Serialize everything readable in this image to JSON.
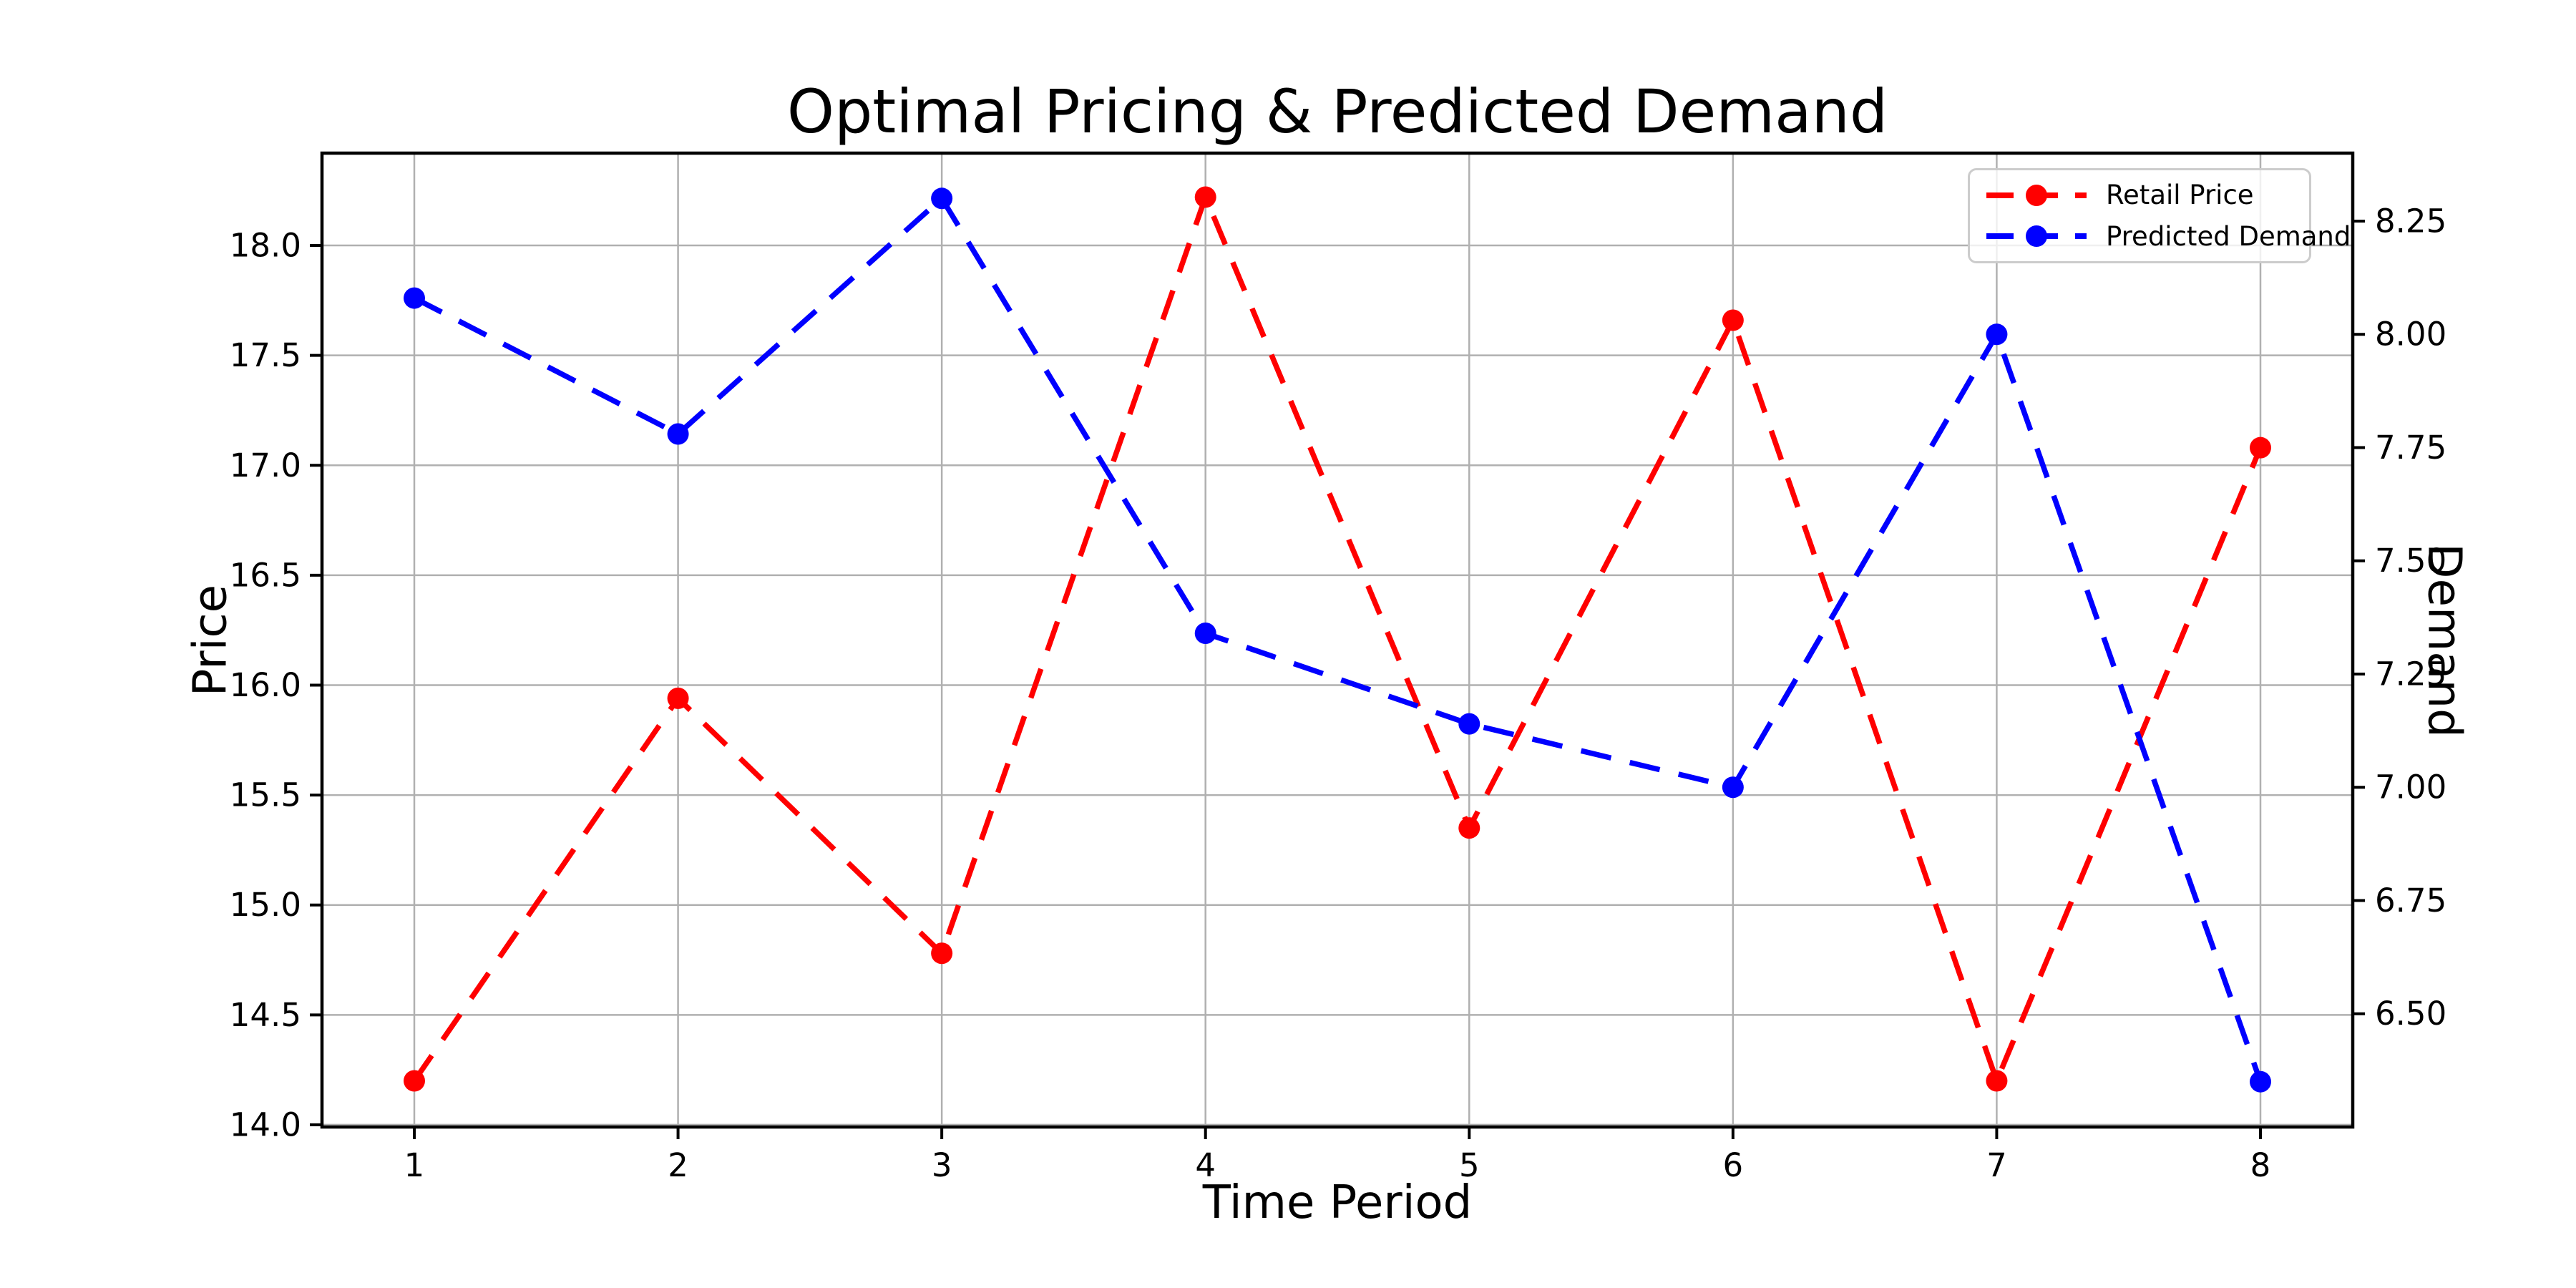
{
  "figure": {
    "background": "#ffffff",
    "plot_border_color": "#000000",
    "grid_color": "#b0b0b0",
    "legend_border_color": "#cccccc"
  },
  "chart_data": {
    "type": "line",
    "title": "Optimal Pricing & Predicted Demand",
    "xlabel": "Time Period",
    "ylabel_left": "Price",
    "ylabel_right": "Demand",
    "grid": true,
    "legend_position": "upper right",
    "x": [
      1,
      2,
      3,
      4,
      5,
      6,
      7,
      8
    ],
    "x_tick_labels": [
      "1",
      "2",
      "3",
      "4",
      "5",
      "6",
      "7",
      "8"
    ],
    "xlim": [
      0.65,
      8.35
    ],
    "left_axis": {
      "lim": [
        13.99,
        18.42
      ],
      "ticks": [
        {
          "value": 14.0,
          "label": "14.0"
        },
        {
          "value": 14.5,
          "label": "14.5"
        },
        {
          "value": 15.0,
          "label": "15.0"
        },
        {
          "value": 15.5,
          "label": "15.5"
        },
        {
          "value": 16.0,
          "label": "16.0"
        },
        {
          "value": 16.5,
          "label": "16.5"
        },
        {
          "value": 17.0,
          "label": "17.0"
        },
        {
          "value": 17.5,
          "label": "17.5"
        },
        {
          "value": 18.0,
          "label": "18.0"
        }
      ]
    },
    "right_axis": {
      "lim": [
        6.25,
        8.4
      ],
      "ticks": [
        {
          "value": 6.5,
          "label": "6.50"
        },
        {
          "value": 6.75,
          "label": "6.75"
        },
        {
          "value": 7.0,
          "label": "7.00"
        },
        {
          "value": 7.25,
          "label": "7.25"
        },
        {
          "value": 7.5,
          "label": "7.50"
        },
        {
          "value": 7.75,
          "label": "7.75"
        },
        {
          "value": 8.0,
          "label": "8.00"
        },
        {
          "value": 8.25,
          "label": "8.25"
        }
      ]
    },
    "series": [
      {
        "name": "Retail Price",
        "axis": "left",
        "color": "#ff0000",
        "linestyle": "dashed",
        "marker": "o",
        "values": [
          14.2,
          15.94,
          14.78,
          18.22,
          15.35,
          17.66,
          14.2,
          17.08
        ]
      },
      {
        "name": "Predicted Demand",
        "axis": "right",
        "color": "#0000ff",
        "linestyle": "dashed",
        "marker": "o",
        "values": [
          8.08,
          7.78,
          8.3,
          7.34,
          7.14,
          7.0,
          8.0,
          6.35
        ]
      }
    ]
  }
}
